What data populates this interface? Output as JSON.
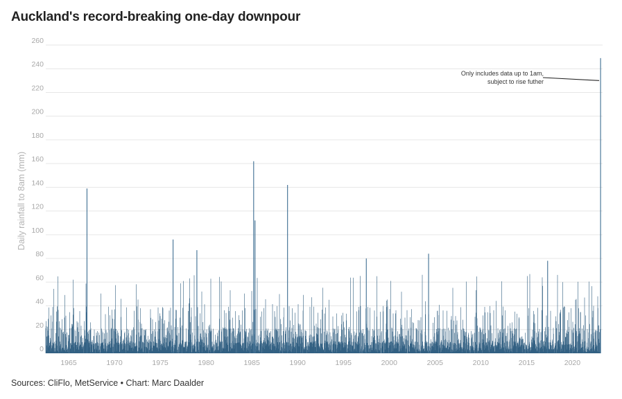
{
  "chart_data": {
    "type": "bar",
    "title": "Auckland's record-breaking one-day downpour",
    "ylabel": "Daily rainfall to 8am (mm)",
    "xlabel": "",
    "ylim": [
      0,
      260
    ],
    "xlim": [
      1962.5,
      2023.3
    ],
    "yticks": [
      0,
      20,
      40,
      60,
      80,
      100,
      120,
      140,
      160,
      180,
      200,
      220,
      240,
      260
    ],
    "xticks": [
      "1965",
      "1970",
      "1975",
      "1980",
      "1985",
      "1990",
      "1995",
      "2000",
      "2005",
      "2010",
      "2015",
      "2020"
    ],
    "bar_color": "#2e5d80",
    "grid": true,
    "notable_days": [
      {
        "year": 1967.0,
        "value": 139
      },
      {
        "year": 1976.4,
        "value": 96
      },
      {
        "year": 1979.0,
        "value": 87
      },
      {
        "year": 1985.2,
        "value": 162
      },
      {
        "year": 1985.35,
        "value": 112
      },
      {
        "year": 1988.9,
        "value": 142
      },
      {
        "year": 1997.5,
        "value": 80
      },
      {
        "year": 2004.3,
        "value": 84
      },
      {
        "year": 2017.3,
        "value": 78
      },
      {
        "year": 2023.08,
        "value": 249
      }
    ],
    "annotation": {
      "lines": [
        "Only includes data up to 1am,",
        "subject to rise futher"
      ],
      "points_to": {
        "year": 2023.08,
        "value": 230
      }
    }
  },
  "footer": {
    "source": "Sources: CliFlo, MetService • Chart: Marc Daalder"
  }
}
